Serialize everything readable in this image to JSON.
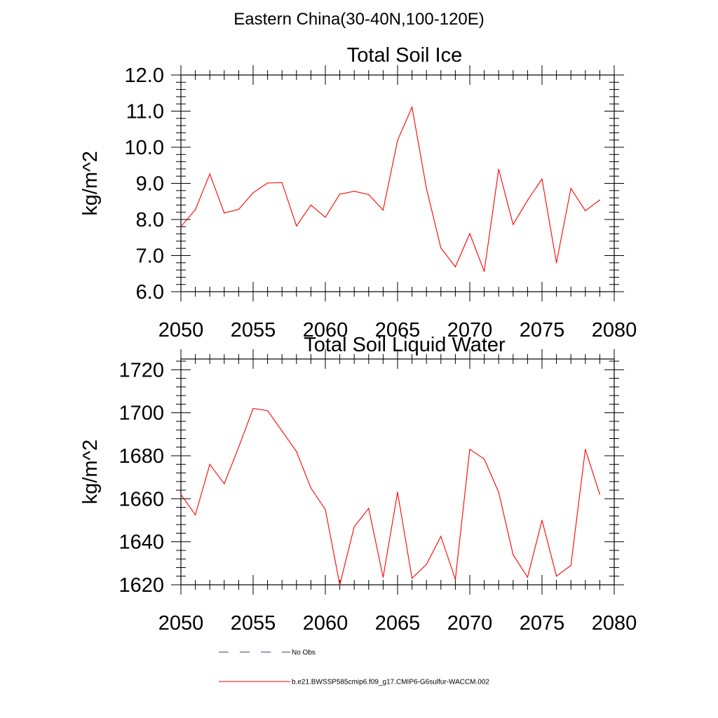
{
  "figure": {
    "title": "Eastern China(30-40N,100-120E)"
  },
  "legend": {
    "items": [
      {
        "label": "No Obs",
        "color": "#3a3a8a",
        "dash": "dashed"
      },
      {
        "label": "b.e21.BWSSP585cmip6.f09_g17.CMIP6-G6sulfur-WACCM.002",
        "color": "#ff0000",
        "dash": "solid"
      }
    ]
  },
  "chart_data": [
    {
      "type": "line",
      "title": "Total Soil Ice",
      "xlabel": "",
      "ylabel": "kg/m^2",
      "xlim": [
        2050,
        2080
      ],
      "ylim": [
        6.0,
        12.0
      ],
      "xticks": [
        2050,
        2055,
        2060,
        2065,
        2070,
        2075,
        2080
      ],
      "yticks": [
        6.0,
        7.0,
        8.0,
        9.0,
        10.0,
        11.0,
        12.0
      ],
      "ytick_labels": [
        "6.0",
        "7.0",
        "8.0",
        "9.0",
        "10.0",
        "11.0",
        "12.0"
      ],
      "series": [
        {
          "name": "b.e21.BWSSP585cmip6.f09_g17.CMIP6-G6sulfur-WACCM.002",
          "color": "#ff0000",
          "x": [
            2050,
            2051,
            2052,
            2053,
            2054,
            2055,
            2056,
            2057,
            2058,
            2059,
            2060,
            2061,
            2062,
            2063,
            2064,
            2065,
            2066,
            2067,
            2068,
            2069,
            2070,
            2071,
            2072,
            2073,
            2074,
            2075,
            2076,
            2077,
            2078,
            2079
          ],
          "values": [
            7.8,
            8.27,
            9.26,
            8.18,
            8.28,
            8.74,
            9.01,
            9.02,
            7.82,
            8.4,
            8.06,
            8.7,
            8.78,
            8.69,
            8.26,
            10.19,
            11.11,
            8.86,
            7.21,
            6.69,
            7.61,
            6.56,
            9.39,
            7.86,
            8.53,
            9.12,
            6.8,
            8.86,
            8.24,
            8.54
          ]
        }
      ]
    },
    {
      "type": "line",
      "title": "Total Soil Liquid Water",
      "xlabel": "",
      "ylabel": "kg/m^2",
      "xlim": [
        2050,
        2080
      ],
      "ylim": [
        1620,
        1725
      ],
      "xticks": [
        2050,
        2055,
        2060,
        2065,
        2070,
        2075,
        2080
      ],
      "yticks": [
        1620,
        1640,
        1660,
        1680,
        1700,
        1720
      ],
      "ytick_labels": [
        "1620",
        "1640",
        "1660",
        "1680",
        "1700",
        "1720"
      ],
      "series": [
        {
          "name": "b.e21.BWSSP585cmip6.f09_g17.CMIP6-G6sulfur-WACCM.002",
          "color": "#ff0000",
          "x": [
            2050,
            2051,
            2052,
            2053,
            2054,
            2055,
            2056,
            2057,
            2058,
            2059,
            2060,
            2061,
            2062,
            2063,
            2064,
            2065,
            2066,
            2067,
            2068,
            2069,
            2070,
            2071,
            2072,
            2073,
            2074,
            2075,
            2076,
            2077,
            2078,
            2079
          ],
          "values": [
            1662,
            1652.5,
            1676,
            1667,
            1684,
            1702,
            1701,
            1691.5,
            1682,
            1665,
            1655,
            1620,
            1647,
            1655.5,
            1623.5,
            1663,
            1623,
            1629.5,
            1642.5,
            1622.5,
            1683,
            1678.5,
            1663,
            1634,
            1623.5,
            1650,
            1624,
            1629,
            1683,
            1662
          ]
        }
      ]
    }
  ]
}
